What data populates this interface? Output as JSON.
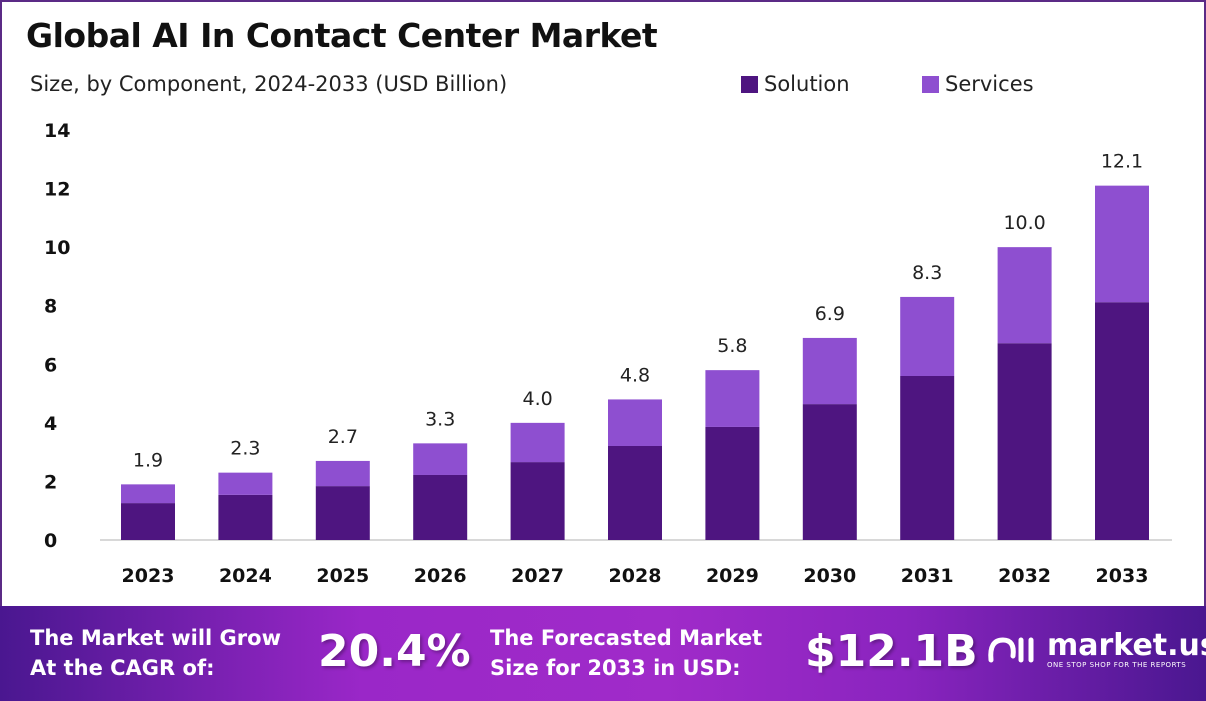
{
  "chart_data": {
    "type": "bar",
    "stacked": true,
    "title": "Global AI In Contact Center Market",
    "subtitle": "Size, by Component, 2024-2033 (USD Billion)",
    "categories": [
      "2023",
      "2024",
      "2025",
      "2026",
      "2027",
      "2028",
      "2029",
      "2030",
      "2031",
      "2032",
      "2033"
    ],
    "series": [
      {
        "name": "Solution",
        "color": "#4e1580",
        "values": [
          1.26,
          1.54,
          1.84,
          2.22,
          2.66,
          3.21,
          3.86,
          4.64,
          5.6,
          6.72,
          8.12
        ]
      },
      {
        "name": "Services",
        "color": "#8e4fd0",
        "values": [
          0.64,
          0.76,
          0.86,
          1.08,
          1.34,
          1.59,
          1.94,
          2.26,
          2.7,
          3.28,
          3.98
        ]
      }
    ],
    "totals": [
      "1.9",
      "2.3",
      "2.7",
      "3.3",
      "4.0",
      "4.8",
      "5.8",
      "6.9",
      "8.3",
      "10.0",
      "12.1"
    ],
    "yticks": [
      "0",
      "2",
      "4",
      "6",
      "8",
      "10",
      "12",
      "14"
    ],
    "ylim": [
      0,
      14
    ],
    "grid": false,
    "legend_position": "top-right"
  },
  "footer": {
    "cagr_label_1": "The Market will Grow",
    "cagr_label_2": "At the CAGR of:",
    "cagr_value": "20.4%",
    "forecast_label_1": "The Forecasted Market",
    "forecast_label_2": "Size for 2033 in USD:",
    "forecast_value": "$12.1B",
    "logo_name": "market.us",
    "logo_tagline": "ONE STOP SHOP FOR THE REPORTS"
  }
}
